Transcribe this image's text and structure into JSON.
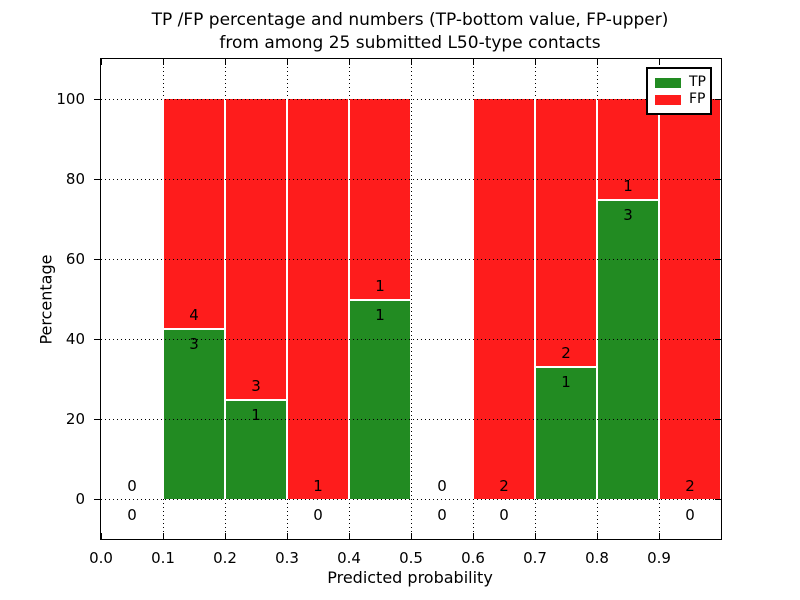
{
  "title": {
    "line1": "TP /FP percentage and numbers (TP-bottom value, FP-upper)",
    "line2": "from among 25 submitted L50-type contacts"
  },
  "axes": {
    "xlabel": "Predicted probability",
    "ylabel": "Percentage",
    "xlim": [
      0.0,
      1.0
    ],
    "ylim": [
      -10,
      110
    ],
    "xticks": [
      {
        "v": 0.0,
        "label": "0.0"
      },
      {
        "v": 0.1,
        "label": "0.1"
      },
      {
        "v": 0.2,
        "label": "0.2"
      },
      {
        "v": 0.3,
        "label": "0.3"
      },
      {
        "v": 0.4,
        "label": "0.4"
      },
      {
        "v": 0.5,
        "label": "0.5"
      },
      {
        "v": 0.6,
        "label": "0.6"
      },
      {
        "v": 0.7,
        "label": "0.7"
      },
      {
        "v": 0.8,
        "label": "0.8"
      },
      {
        "v": 0.9,
        "label": "0.9"
      }
    ],
    "yticks": [
      {
        "v": 0,
        "label": "0"
      },
      {
        "v": 20,
        "label": "20"
      },
      {
        "v": 40,
        "label": "40"
      },
      {
        "v": 60,
        "label": "60"
      },
      {
        "v": 80,
        "label": "80"
      },
      {
        "v": 100,
        "label": "100"
      }
    ],
    "grid_style": "dotted"
  },
  "legend": {
    "position": "upper-right",
    "items": [
      {
        "label": "TP",
        "color": "#228b22"
      },
      {
        "label": "FP",
        "color": "#fe1c1c"
      }
    ]
  },
  "chart_data": {
    "type": "bar",
    "stacked": true,
    "unit": "percent of bin (TP+FP normalized to 100%)",
    "colors": {
      "TP": "#228b22",
      "FP": "#fe1c1c"
    },
    "total_submitted_contacts": 25,
    "bins": [
      {
        "range": [
          0.0,
          0.1
        ],
        "tp": 0,
        "fp": 0,
        "tp_pct": 0
      },
      {
        "range": [
          0.1,
          0.2
        ],
        "tp": 3,
        "fp": 4,
        "tp_pct": 42.9
      },
      {
        "range": [
          0.2,
          0.3
        ],
        "tp": 1,
        "fp": 3,
        "tp_pct": 25
      },
      {
        "range": [
          0.3,
          0.4
        ],
        "tp": 0,
        "fp": 1,
        "tp_pct": 0
      },
      {
        "range": [
          0.4,
          0.5
        ],
        "tp": 1,
        "fp": 1,
        "tp_pct": 50
      },
      {
        "range": [
          0.5,
          0.6
        ],
        "tp": 0,
        "fp": 0,
        "tp_pct": 0
      },
      {
        "range": [
          0.6,
          0.7
        ],
        "tp": 0,
        "fp": 2,
        "tp_pct": 0
      },
      {
        "range": [
          0.7,
          0.8
        ],
        "tp": 1,
        "fp": 2,
        "tp_pct": 33.3
      },
      {
        "range": [
          0.8,
          0.9
        ],
        "tp": 3,
        "fp": 1,
        "tp_pct": 75
      },
      {
        "range": [
          0.9,
          1.0
        ],
        "tp": 0,
        "fp": 2,
        "tp_pct": 0
      }
    ],
    "series": [
      {
        "name": "TP",
        "counts": [
          0,
          3,
          1,
          0,
          1,
          0,
          0,
          1,
          3,
          0
        ]
      },
      {
        "name": "FP",
        "counts": [
          0,
          4,
          3,
          1,
          1,
          0,
          2,
          2,
          1,
          2
        ]
      }
    ],
    "value_label_rule": "FP count printed just above the TP/FP boundary, TP count just below it"
  }
}
